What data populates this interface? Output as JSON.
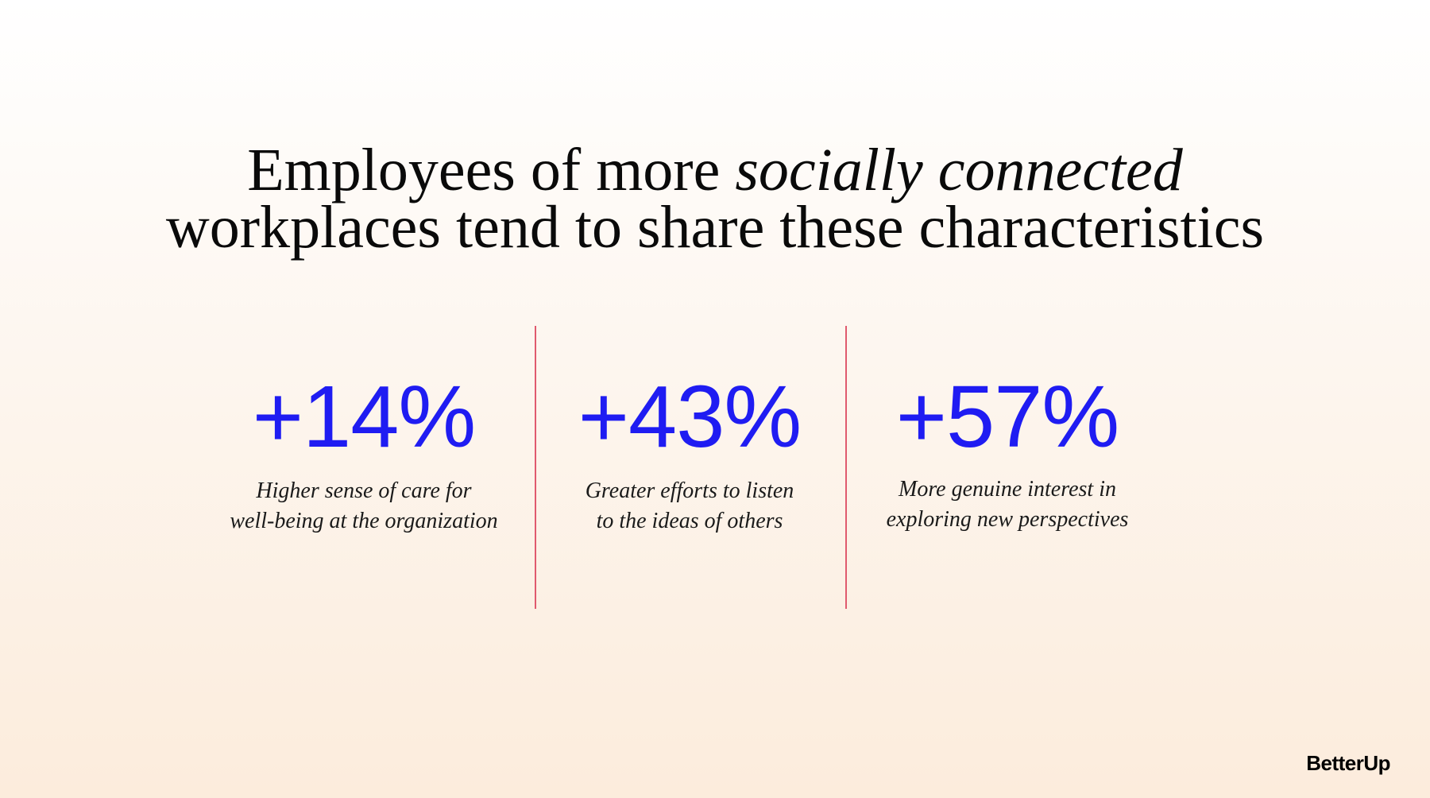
{
  "title": {
    "line1_before": "Employees of more ",
    "line1_italic": "socially connected",
    "line2": "workplaces tend to share these characteristics"
  },
  "stats": [
    {
      "value": "+14%",
      "desc_line1": "Higher sense of care for",
      "desc_line2": "well-being at the organization"
    },
    {
      "value": "+43%",
      "desc_line1": "Greater efforts to listen",
      "desc_line2": "to the ideas of others"
    },
    {
      "value": "+57%",
      "desc_line1": "More genuine interest in",
      "desc_line2": "exploring new perspectives"
    }
  ],
  "brand": {
    "logo_text": "BetterUp"
  },
  "colors": {
    "stat_value": "#1f1cf2",
    "divider": "#e05a6e",
    "background_top": "#ffffff",
    "background_bottom": "#fcecdc"
  }
}
